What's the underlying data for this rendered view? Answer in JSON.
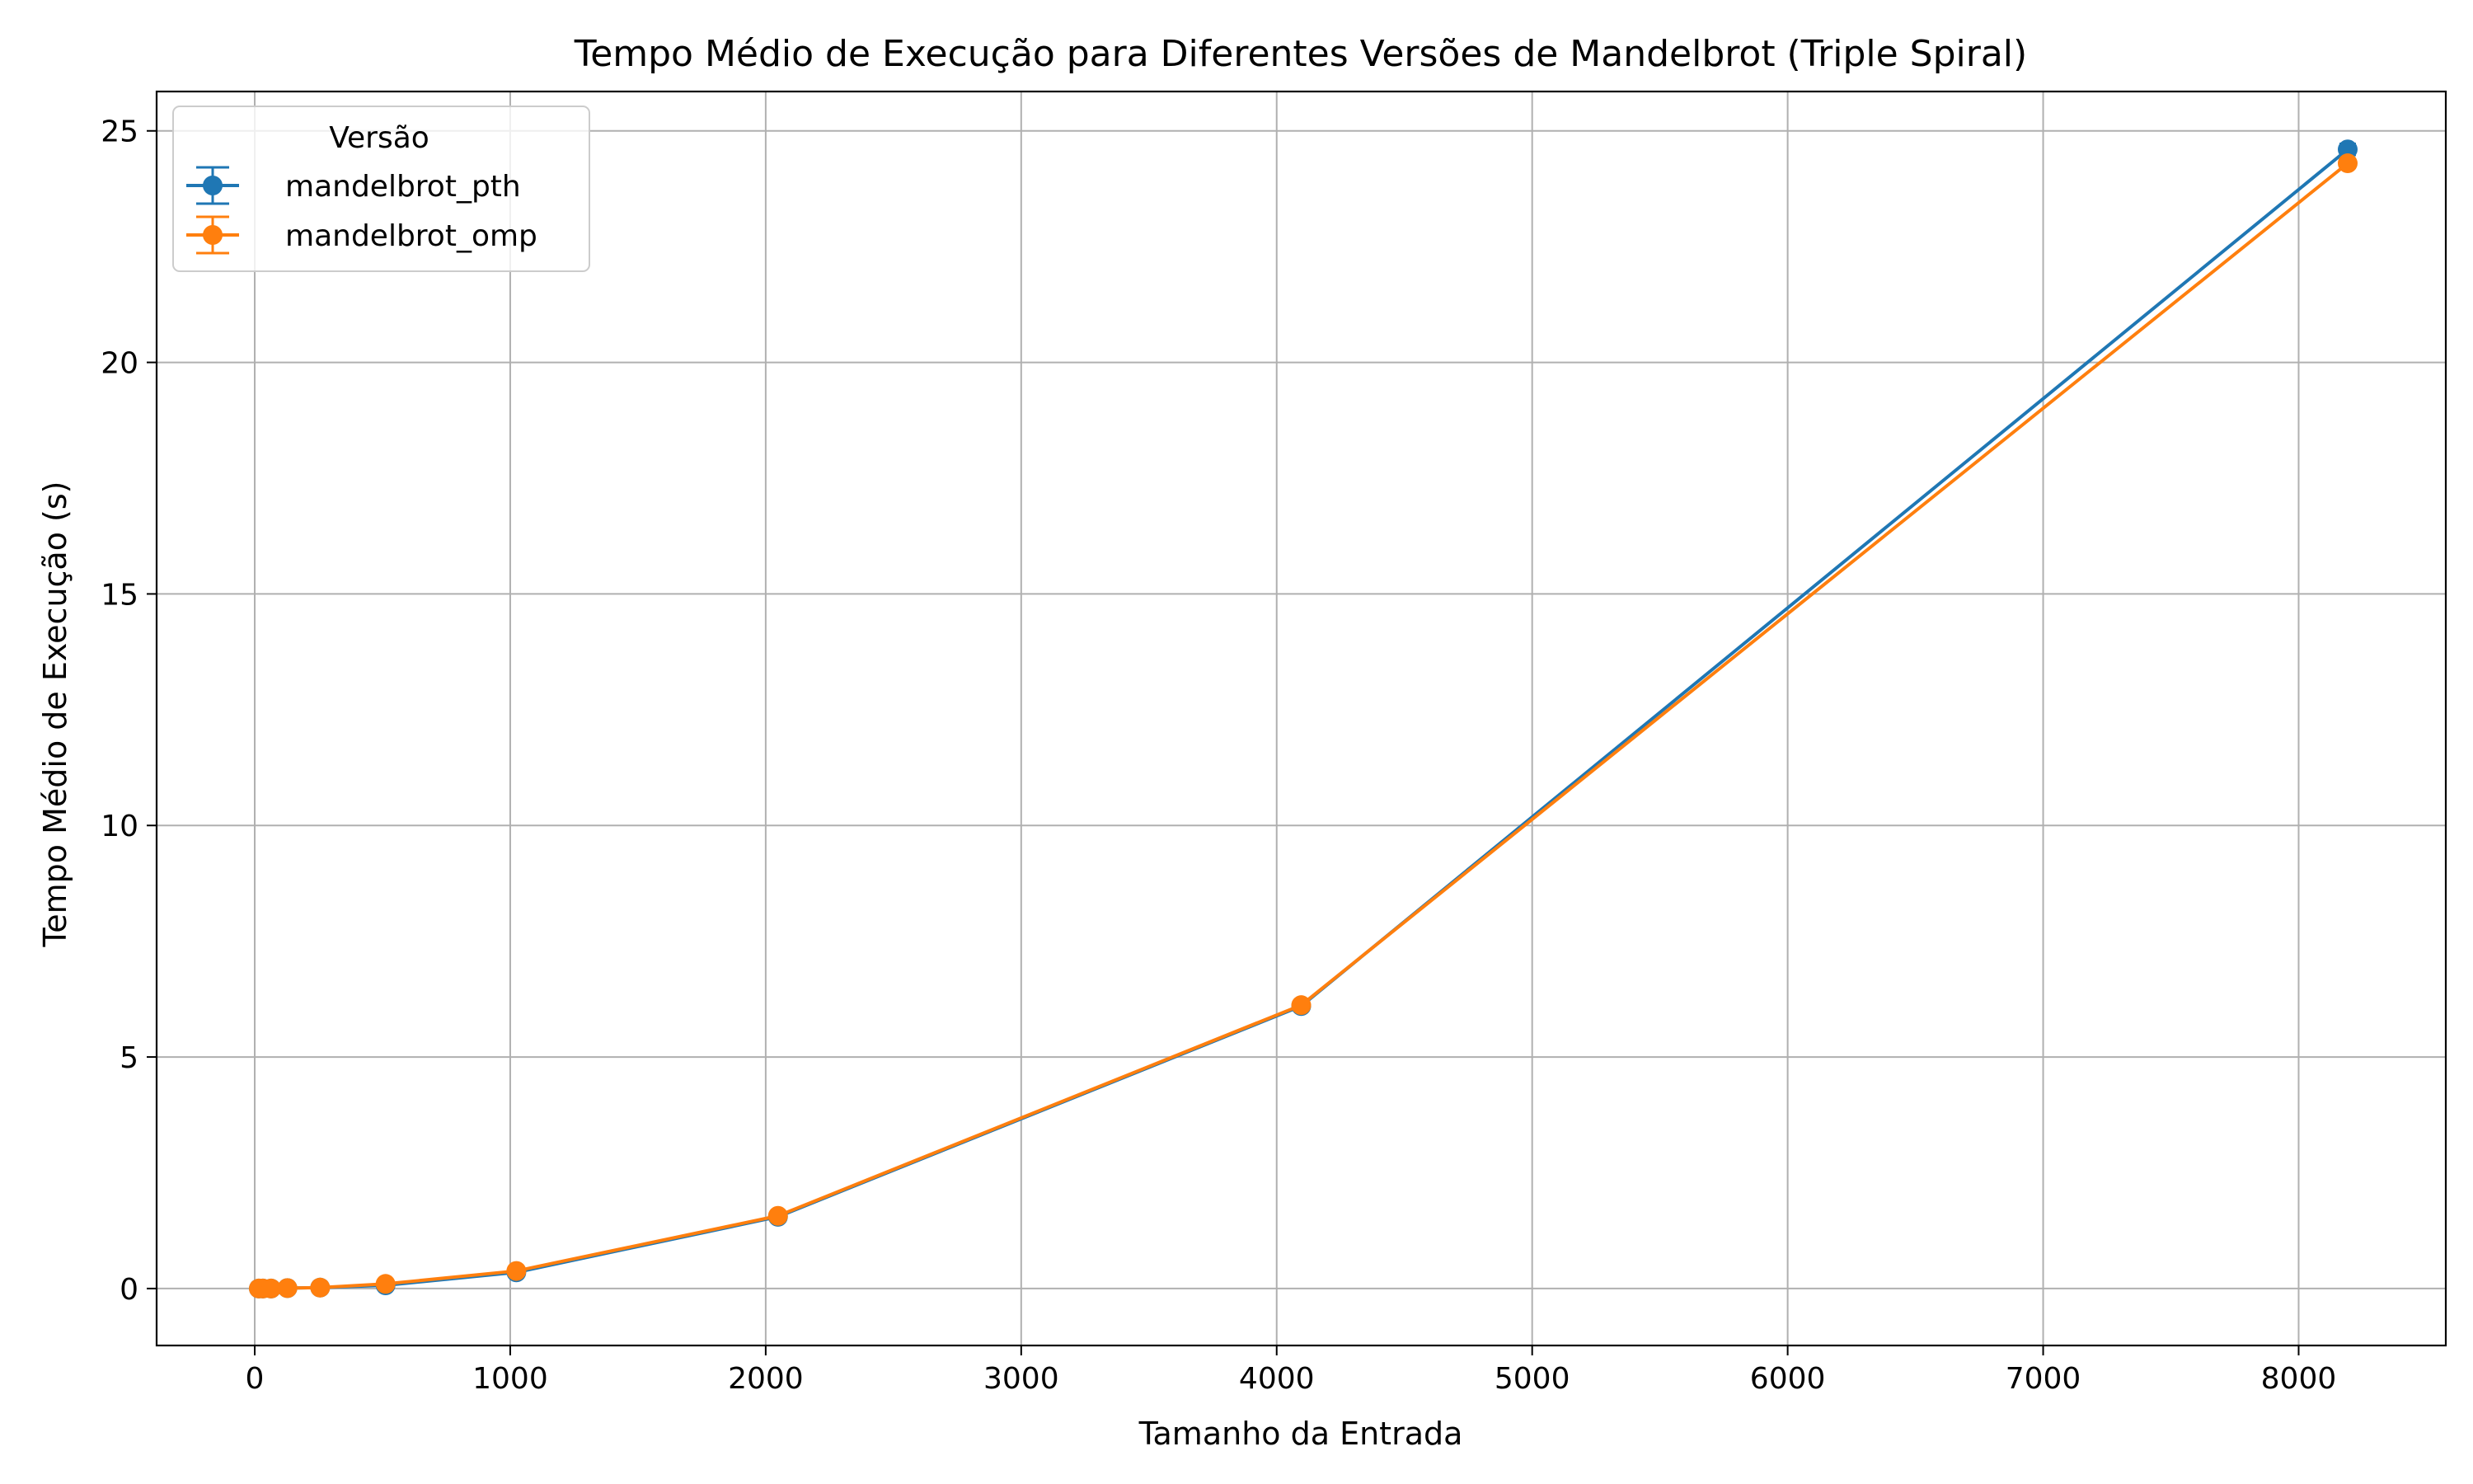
{
  "chart_data": {
    "type": "line",
    "title": "Tempo Médio de Execução para Diferentes Versões de Mandelbrot (Triple Spiral)",
    "xlabel": "Tamanho da Entrada",
    "ylabel": "Tempo Médio de Execução (s)",
    "xlim": [
      -384,
      8576
    ],
    "ylim": [
      -1.23,
      25.85
    ],
    "xticks": [
      0,
      1000,
      2000,
      3000,
      4000,
      5000,
      6000,
      7000,
      8000
    ],
    "yticks": [
      0,
      5,
      10,
      15,
      20,
      25
    ],
    "grid": true,
    "error_bars": true,
    "legend": {
      "title": "Versão",
      "placement": "top-left"
    },
    "x": [
      16,
      32,
      64,
      128,
      256,
      512,
      1024,
      2048,
      4096,
      8192
    ],
    "series": [
      {
        "name": "mandelbrot_pth",
        "color": "#1f77b4",
        "values": [
          0.0,
          0.0,
          0.0,
          0.01,
          0.02,
          0.07,
          0.35,
          1.55,
          6.1,
          24.6
        ],
        "errors": [
          0.0,
          0.0,
          0.0,
          0.0,
          0.0,
          0.0,
          0.01,
          0.03,
          0.05,
          0.12
        ]
      },
      {
        "name": "mandelbrot_omp",
        "color": "#ff7f0e",
        "values": [
          0.0,
          0.0,
          0.0,
          0.01,
          0.02,
          0.1,
          0.38,
          1.57,
          6.12,
          24.3
        ],
        "errors": [
          0.0,
          0.0,
          0.0,
          0.0,
          0.0,
          0.0,
          0.01,
          0.03,
          0.05,
          0.1
        ]
      }
    ]
  }
}
